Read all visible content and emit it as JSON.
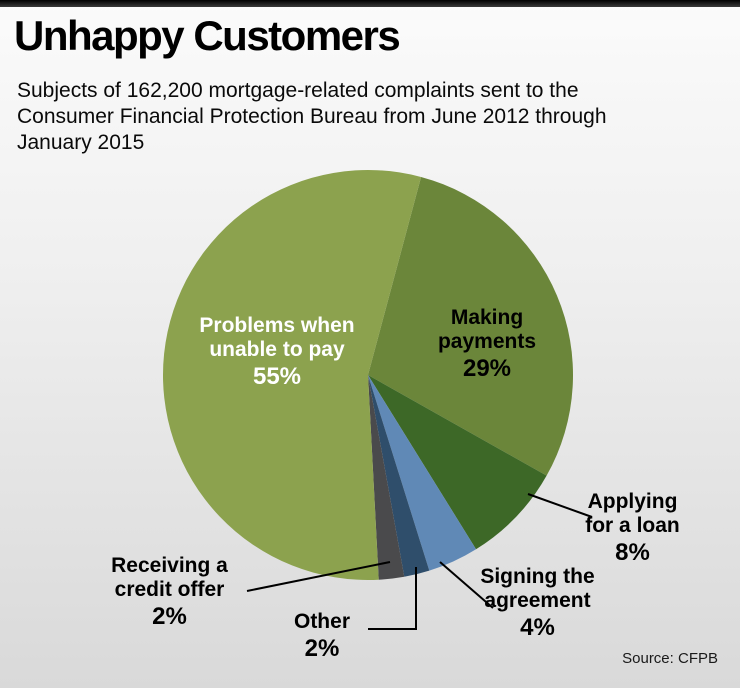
{
  "header": {
    "title": "Unhappy Customers",
    "subtitle_lines": [
      "Subjects of 162,200 mortgage-related complaints sent to the",
      "Consumer Financial Protection Bureau from June 2012 through",
      "January 2015"
    ]
  },
  "footer": {
    "source": "Source: CFPB"
  },
  "chart_data": {
    "type": "pie",
    "title": "Unhappy Customers",
    "subtitle": "Subjects of 162,200 mortgage-related complaints sent to the Consumer Financial Protection Bureau from June 2012 through January 2015",
    "source": "CFPB",
    "rotation_deg_clockwise_from_top": 15,
    "slices": [
      {
        "label": "Making payments",
        "value": 29,
        "color": "#6b863a"
      },
      {
        "label": "Applying for a loan",
        "value": 8,
        "color": "#3d6827"
      },
      {
        "label": "Signing the agreement",
        "value": 4,
        "color": "#6089b6"
      },
      {
        "label": "Other",
        "value": 2,
        "color": "#2f4e6b"
      },
      {
        "label": "Receiving a credit offer",
        "value": 2,
        "color": "#4a4a4c"
      },
      {
        "label": "Problems when unable to pay",
        "value": 55,
        "color": "#8ca24e"
      }
    ]
  },
  "labels": {
    "problems": {
      "line1": "Problems when",
      "line2": "unable to pay",
      "pct": "55%"
    },
    "making": {
      "line1": "Making",
      "line2": "payments",
      "pct": "29%"
    },
    "applying": {
      "line1": "Applying",
      "line2": "for a loan",
      "pct": "8%"
    },
    "signing": {
      "line1": "Signing the",
      "line2": "agreement",
      "pct": "4%"
    },
    "other": {
      "line1": "Other",
      "pct": "2%"
    },
    "receiving": {
      "line1": "Receiving a",
      "line2": "credit offer",
      "pct": "2%"
    }
  }
}
